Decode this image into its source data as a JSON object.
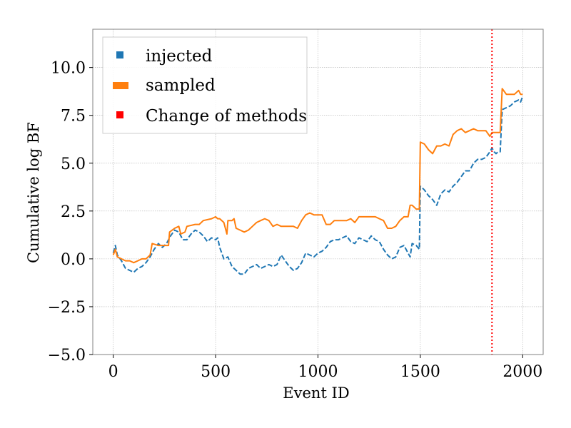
{
  "chart_data": {
    "type": "line",
    "xlabel": "Event ID",
    "ylabel": "Cumulative log BF",
    "xlim": [
      -100,
      2100
    ],
    "ylim": [
      -5.0,
      12.0
    ],
    "x_ticks": [
      0,
      500,
      1000,
      1500,
      2000
    ],
    "x_tick_labels": [
      "0",
      "500",
      "1000",
      "1500",
      "2000"
    ],
    "y_ticks": [
      -5.0,
      -2.5,
      0.0,
      2.5,
      5.0,
      7.5,
      10.0
    ],
    "y_tick_labels": [
      "−5.0",
      "−2.5",
      "0.0",
      "2.5",
      "5.0",
      "7.5",
      "10.0"
    ],
    "grid": true,
    "legend_position": "top-left",
    "legend": [
      {
        "label": "injected",
        "color": "#1f77b4"
      },
      {
        "label": "sampled",
        "color": "#ff7f0e"
      },
      {
        "label": "Change of methods",
        "color": "#ff0000"
      }
    ],
    "series": [
      {
        "name": "injected",
        "color": "#1f77b4",
        "style": "dashed",
        "points": [
          [
            0,
            0.3
          ],
          [
            10,
            0.7
          ],
          [
            20,
            0.2
          ],
          [
            40,
            -0.1
          ],
          [
            60,
            -0.5
          ],
          [
            80,
            -0.6
          ],
          [
            100,
            -0.7
          ],
          [
            120,
            -0.5
          ],
          [
            140,
            -0.4
          ],
          [
            160,
            -0.2
          ],
          [
            180,
            0.1
          ],
          [
            200,
            0.5
          ],
          [
            220,
            0.8
          ],
          [
            240,
            0.6
          ],
          [
            260,
            0.8
          ],
          [
            280,
            1.2
          ],
          [
            300,
            1.5
          ],
          [
            320,
            1.4
          ],
          [
            340,
            1.0
          ],
          [
            360,
            1.0
          ],
          [
            380,
            1.3
          ],
          [
            400,
            1.5
          ],
          [
            420,
            1.4
          ],
          [
            440,
            1.2
          ],
          [
            460,
            0.9
          ],
          [
            480,
            1.1
          ],
          [
            500,
            1.0
          ],
          [
            510,
            1.1
          ],
          [
            520,
            0.6
          ],
          [
            530,
            0.3
          ],
          [
            540,
            0.0
          ],
          [
            560,
            0.1
          ],
          [
            580,
            -0.4
          ],
          [
            600,
            -0.6
          ],
          [
            620,
            -0.8
          ],
          [
            640,
            -0.8
          ],
          [
            660,
            -0.5
          ],
          [
            680,
            -0.4
          ],
          [
            700,
            -0.3
          ],
          [
            720,
            -0.5
          ],
          [
            740,
            -0.4
          ],
          [
            760,
            -0.3
          ],
          [
            780,
            -0.4
          ],
          [
            800,
            -0.3
          ],
          [
            820,
            0.2
          ],
          [
            840,
            -0.1
          ],
          [
            860,
            -0.4
          ],
          [
            880,
            -0.6
          ],
          [
            900,
            -0.5
          ],
          [
            920,
            -0.2
          ],
          [
            940,
            0.3
          ],
          [
            960,
            0.2
          ],
          [
            980,
            0.1
          ],
          [
            1000,
            0.3
          ],
          [
            1020,
            0.4
          ],
          [
            1040,
            0.6
          ],
          [
            1060,
            0.9
          ],
          [
            1080,
            1.0
          ],
          [
            1100,
            1.0
          ],
          [
            1120,
            1.1
          ],
          [
            1140,
            1.2
          ],
          [
            1160,
            0.9
          ],
          [
            1180,
            0.8
          ],
          [
            1200,
            1.1
          ],
          [
            1220,
            1.0
          ],
          [
            1240,
            0.9
          ],
          [
            1260,
            1.2
          ],
          [
            1280,
            1.0
          ],
          [
            1300,
            0.9
          ],
          [
            1320,
            0.5
          ],
          [
            1340,
            0.2
          ],
          [
            1360,
            0.0
          ],
          [
            1380,
            0.1
          ],
          [
            1400,
            0.6
          ],
          [
            1420,
            0.7
          ],
          [
            1440,
            0.3
          ],
          [
            1450,
            0.1
          ],
          [
            1460,
            0.8
          ],
          [
            1480,
            0.7
          ],
          [
            1495,
            0.5
          ],
          [
            1500,
            3.8
          ],
          [
            1510,
            3.7
          ],
          [
            1520,
            3.6
          ],
          [
            1540,
            3.3
          ],
          [
            1560,
            3.1
          ],
          [
            1580,
            2.8
          ],
          [
            1600,
            3.4
          ],
          [
            1620,
            3.6
          ],
          [
            1640,
            3.5
          ],
          [
            1660,
            3.8
          ],
          [
            1680,
            4.0
          ],
          [
            1700,
            4.3
          ],
          [
            1720,
            4.6
          ],
          [
            1740,
            4.6
          ],
          [
            1760,
            5.0
          ],
          [
            1780,
            5.2
          ],
          [
            1800,
            5.2
          ],
          [
            1820,
            5.3
          ],
          [
            1840,
            5.6
          ],
          [
            1850,
            5.8
          ],
          [
            1860,
            5.6
          ],
          [
            1870,
            5.5
          ],
          [
            1880,
            5.6
          ],
          [
            1890,
            5.6
          ],
          [
            1900,
            7.8
          ],
          [
            1920,
            7.9
          ],
          [
            1940,
            8.0
          ],
          [
            1960,
            8.2
          ],
          [
            1980,
            8.3
          ],
          [
            1990,
            8.2
          ],
          [
            2000,
            8.5
          ]
        ]
      },
      {
        "name": "sampled",
        "color": "#ff7f0e",
        "style": "solid",
        "points": [
          [
            0,
            0.2
          ],
          [
            10,
            0.5
          ],
          [
            20,
            0.1
          ],
          [
            40,
            0.0
          ],
          [
            60,
            -0.1
          ],
          [
            80,
            -0.1
          ],
          [
            100,
            -0.2
          ],
          [
            120,
            -0.1
          ],
          [
            140,
            0.0
          ],
          [
            160,
            0.0
          ],
          [
            180,
            0.2
          ],
          [
            190,
            0.8
          ],
          [
            220,
            0.7
          ],
          [
            250,
            0.7
          ],
          [
            270,
            0.7
          ],
          [
            275,
            1.4
          ],
          [
            300,
            1.6
          ],
          [
            320,
            1.7
          ],
          [
            330,
            1.3
          ],
          [
            350,
            1.4
          ],
          [
            360,
            1.7
          ],
          [
            400,
            1.8
          ],
          [
            420,
            1.8
          ],
          [
            440,
            2.0
          ],
          [
            480,
            2.1
          ],
          [
            500,
            2.2
          ],
          [
            510,
            2.1
          ],
          [
            520,
            2.1
          ],
          [
            540,
            1.9
          ],
          [
            555,
            1.3
          ],
          [
            560,
            2.0
          ],
          [
            580,
            2.0
          ],
          [
            590,
            2.1
          ],
          [
            600,
            1.6
          ],
          [
            620,
            1.5
          ],
          [
            640,
            1.4
          ],
          [
            660,
            1.5
          ],
          [
            680,
            1.7
          ],
          [
            700,
            1.9
          ],
          [
            720,
            2.0
          ],
          [
            740,
            2.1
          ],
          [
            760,
            2.0
          ],
          [
            780,
            1.7
          ],
          [
            800,
            1.8
          ],
          [
            820,
            1.7
          ],
          [
            840,
            1.7
          ],
          [
            860,
            1.7
          ],
          [
            880,
            1.7
          ],
          [
            900,
            1.6
          ],
          [
            920,
            2.0
          ],
          [
            940,
            2.3
          ],
          [
            960,
            2.4
          ],
          [
            980,
            2.3
          ],
          [
            1000,
            2.3
          ],
          [
            1020,
            2.3
          ],
          [
            1040,
            1.8
          ],
          [
            1060,
            1.8
          ],
          [
            1080,
            2.0
          ],
          [
            1100,
            2.0
          ],
          [
            1120,
            2.0
          ],
          [
            1140,
            2.0
          ],
          [
            1160,
            2.1
          ],
          [
            1180,
            1.9
          ],
          [
            1200,
            2.2
          ],
          [
            1220,
            2.2
          ],
          [
            1240,
            2.2
          ],
          [
            1260,
            2.2
          ],
          [
            1280,
            2.2
          ],
          [
            1300,
            2.1
          ],
          [
            1320,
            2.0
          ],
          [
            1340,
            1.6
          ],
          [
            1360,
            1.6
          ],
          [
            1380,
            1.7
          ],
          [
            1400,
            2.0
          ],
          [
            1420,
            2.2
          ],
          [
            1440,
            2.2
          ],
          [
            1450,
            2.8
          ],
          [
            1460,
            2.8
          ],
          [
            1480,
            2.6
          ],
          [
            1495,
            2.6
          ],
          [
            1500,
            6.1
          ],
          [
            1520,
            6.0
          ],
          [
            1540,
            5.7
          ],
          [
            1560,
            5.5
          ],
          [
            1580,
            5.9
          ],
          [
            1600,
            5.9
          ],
          [
            1620,
            6.0
          ],
          [
            1640,
            5.9
          ],
          [
            1660,
            6.5
          ],
          [
            1680,
            6.7
          ],
          [
            1700,
            6.8
          ],
          [
            1720,
            6.6
          ],
          [
            1740,
            6.7
          ],
          [
            1760,
            6.8
          ],
          [
            1780,
            6.7
          ],
          [
            1800,
            6.7
          ],
          [
            1820,
            6.7
          ],
          [
            1840,
            6.4
          ],
          [
            1850,
            6.6
          ],
          [
            1860,
            6.6
          ],
          [
            1880,
            6.6
          ],
          [
            1890,
            6.6
          ],
          [
            1900,
            8.9
          ],
          [
            1920,
            8.6
          ],
          [
            1940,
            8.6
          ],
          [
            1960,
            8.6
          ],
          [
            1980,
            8.8
          ],
          [
            1990,
            8.6
          ],
          [
            2000,
            8.6
          ]
        ]
      }
    ],
    "vertical_lines": [
      {
        "x": 1850,
        "color": "#ff0000",
        "style": "dotted",
        "name": "Change of methods"
      }
    ]
  }
}
